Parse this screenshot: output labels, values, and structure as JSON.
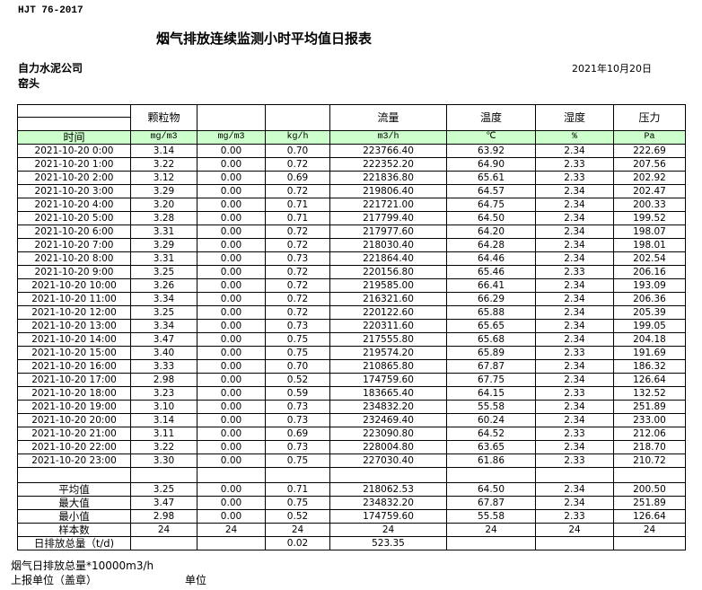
{
  "standard": "HJT  76-2017",
  "title": "烟气排放连续监测小时平均值日报表",
  "company": "自力水泥公司",
  "location": "窑头",
  "date": "2021年10月20日",
  "headers": [
    "",
    "颗粒物",
    "",
    "",
    "流量",
    "温度",
    "湿度",
    "压力"
  ],
  "units": [
    "时间",
    "mg/m3",
    "mg/m3",
    "kg/h",
    "m3/h",
    "℃",
    "%",
    "Pa"
  ],
  "rows": [
    [
      "2021-10-20 0:00",
      "3.14",
      "0.00",
      "0.70",
      "223766.40",
      "63.92",
      "2.34",
      "222.69"
    ],
    [
      "2021-10-20 1:00",
      "3.22",
      "0.00",
      "0.72",
      "222352.20",
      "64.90",
      "2.33",
      "207.56"
    ],
    [
      "2021-10-20 2:00",
      "3.12",
      "0.00",
      "0.69",
      "221836.80",
      "65.61",
      "2.33",
      "202.92"
    ],
    [
      "2021-10-20 3:00",
      "3.29",
      "0.00",
      "0.72",
      "219806.40",
      "64.57",
      "2.34",
      "202.47"
    ],
    [
      "2021-10-20 4:00",
      "3.20",
      "0.00",
      "0.71",
      "221721.00",
      "64.75",
      "2.34",
      "200.33"
    ],
    [
      "2021-10-20 5:00",
      "3.28",
      "0.00",
      "0.71",
      "217799.40",
      "64.50",
      "2.34",
      "199.52"
    ],
    [
      "2021-10-20 6:00",
      "3.31",
      "0.00",
      "0.72",
      "217977.60",
      "64.20",
      "2.34",
      "198.07"
    ],
    [
      "2021-10-20 7:00",
      "3.29",
      "0.00",
      "0.72",
      "218030.40",
      "64.28",
      "2.34",
      "198.01"
    ],
    [
      "2021-10-20 8:00",
      "3.31",
      "0.00",
      "0.73",
      "221864.40",
      "64.46",
      "2.34",
      "202.54"
    ],
    [
      "2021-10-20 9:00",
      "3.25",
      "0.00",
      "0.72",
      "220156.80",
      "65.46",
      "2.33",
      "206.16"
    ],
    [
      "2021-10-20 10:00",
      "3.26",
      "0.00",
      "0.72",
      "219585.00",
      "66.41",
      "2.34",
      "193.09"
    ],
    [
      "2021-10-20 11:00",
      "3.34",
      "0.00",
      "0.72",
      "216321.60",
      "66.29",
      "2.34",
      "206.36"
    ],
    [
      "2021-10-20 12:00",
      "3.25",
      "0.00",
      "0.72",
      "220122.60",
      "65.88",
      "2.34",
      "205.39"
    ],
    [
      "2021-10-20 13:00",
      "3.34",
      "0.00",
      "0.73",
      "220311.60",
      "65.65",
      "2.34",
      "199.05"
    ],
    [
      "2021-10-20 14:00",
      "3.47",
      "0.00",
      "0.75",
      "217555.80",
      "65.68",
      "2.34",
      "204.18"
    ],
    [
      "2021-10-20 15:00",
      "3.40",
      "0.00",
      "0.75",
      "219574.20",
      "65.89",
      "2.33",
      "191.69"
    ],
    [
      "2021-10-20 16:00",
      "3.33",
      "0.00",
      "0.70",
      "210865.80",
      "67.87",
      "2.34",
      "186.32"
    ],
    [
      "2021-10-20 17:00",
      "2.98",
      "0.00",
      "0.52",
      "174759.60",
      "67.75",
      "2.34",
      "126.64"
    ],
    [
      "2021-10-20 18:00",
      "3.23",
      "0.00",
      "0.59",
      "183665.40",
      "64.15",
      "2.33",
      "132.52"
    ],
    [
      "2021-10-20 19:00",
      "3.10",
      "0.00",
      "0.73",
      "234832.20",
      "55.58",
      "2.34",
      "251.89"
    ],
    [
      "2021-10-20 20:00",
      "3.14",
      "0.00",
      "0.73",
      "232469.40",
      "60.24",
      "2.34",
      "233.00"
    ],
    [
      "2021-10-20 21:00",
      "3.11",
      "0.00",
      "0.69",
      "223090.80",
      "64.52",
      "2.33",
      "212.06"
    ],
    [
      "2021-10-20 22:00",
      "3.22",
      "0.00",
      "0.73",
      "228004.80",
      "63.65",
      "2.34",
      "218.70"
    ],
    [
      "2021-10-20 23:00",
      "3.30",
      "0.00",
      "0.75",
      "227030.40",
      "61.86",
      "2.33",
      "210.72"
    ]
  ],
  "summary": [
    [
      "平均值",
      "3.25",
      "0.00",
      "0.71",
      "218062.53",
      "64.50",
      "2.34",
      "200.50"
    ],
    [
      "最大值",
      "3.47",
      "0.00",
      "0.75",
      "234832.20",
      "67.87",
      "2.34",
      "251.89"
    ],
    [
      "最小值",
      "2.98",
      "0.00",
      "0.52",
      "174759.60",
      "55.58",
      "2.33",
      "126.64"
    ],
    [
      "样本数",
      "24",
      "24",
      "24",
      "24",
      "24",
      "24",
      "24"
    ],
    [
      "日排放总量（t/d)",
      "",
      "",
      "0.02",
      "523.35",
      "",
      "",
      ""
    ]
  ],
  "footer": {
    "line1": "烟气日排放总量*10000m3/h",
    "line2": "上报单位（盖章）",
    "line3": "单位"
  }
}
